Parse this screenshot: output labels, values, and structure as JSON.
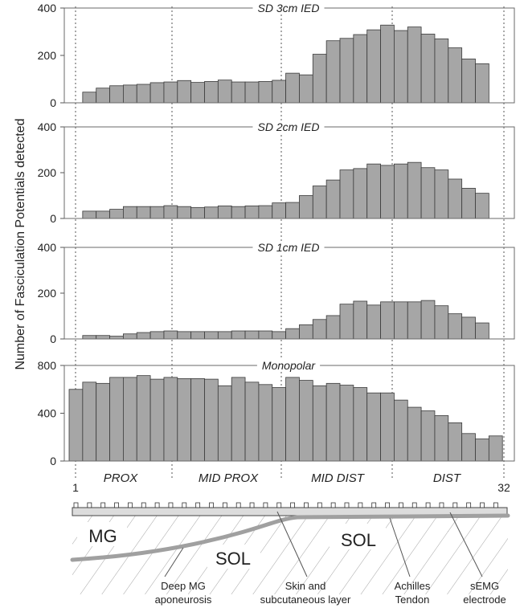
{
  "ylabel": "Number of Fasciculation Potentials detected",
  "channel_labels": {
    "first": "1",
    "last": "32"
  },
  "regions": [
    "PROX",
    "MID PROX",
    "MID DIST",
    "DIST"
  ],
  "anatomy_labels": {
    "mg": "MG",
    "sol_left": "SOL",
    "sol_right": "SOL",
    "deep_mg_line1": "Deep MG",
    "deep_mg_line2": "aponeurosis",
    "skin_line1": "Skin and",
    "skin_line2": "subcutaneous layer",
    "achilles_line1": "Achilles",
    "achilles_line2": "Tendon",
    "semg_line1": "sEMG",
    "semg_line2": "electrode"
  },
  "chart_data": [
    {
      "type": "bar",
      "title": "SD 3cm IED",
      "ylim": [
        0,
        400
      ],
      "yticks": [
        0,
        200,
        400
      ],
      "x": [
        2,
        3,
        4,
        5,
        6,
        7,
        8,
        9,
        10,
        11,
        12,
        13,
        14,
        15,
        16,
        17,
        18,
        19,
        20,
        21,
        22,
        23,
        24,
        25,
        26,
        27,
        28,
        29,
        30,
        31
      ],
      "values": [
        45,
        62,
        72,
        75,
        78,
        85,
        88,
        94,
        86,
        90,
        96,
        88,
        88,
        90,
        95,
        125,
        118,
        205,
        262,
        272,
        288,
        308,
        328,
        305,
        320,
        290,
        270,
        232,
        185,
        165
      ]
    },
    {
      "type": "bar",
      "title": "SD 2cm IED",
      "ylim": [
        0,
        400
      ],
      "yticks": [
        0,
        200,
        400
      ],
      "x": [
        2,
        3,
        4,
        5,
        6,
        7,
        8,
        9,
        10,
        11,
        12,
        13,
        14,
        15,
        16,
        17,
        18,
        19,
        20,
        21,
        22,
        23,
        24,
        25,
        26,
        27,
        28,
        29,
        30,
        31
      ],
      "values": [
        32,
        32,
        40,
        52,
        52,
        52,
        56,
        52,
        48,
        50,
        55,
        52,
        55,
        56,
        68,
        70,
        100,
        142,
        168,
        212,
        218,
        238,
        232,
        238,
        245,
        222,
        212,
        172,
        132,
        110
      ]
    },
    {
      "type": "bar",
      "title": "SD 1cm IED",
      "ylim": [
        0,
        400
      ],
      "yticks": [
        0,
        200,
        400
      ],
      "x": [
        2,
        3,
        4,
        5,
        6,
        7,
        8,
        9,
        10,
        11,
        12,
        13,
        14,
        15,
        16,
        17,
        18,
        19,
        20,
        21,
        22,
        23,
        24,
        25,
        26,
        27,
        28,
        29,
        30,
        31
      ],
      "values": [
        15,
        15,
        12,
        22,
        28,
        32,
        35,
        32,
        32,
        32,
        32,
        35,
        35,
        35,
        32,
        45,
        62,
        85,
        102,
        152,
        165,
        148,
        162,
        162,
        162,
        168,
        145,
        110,
        95,
        70
      ]
    },
    {
      "type": "bar",
      "title": "Monopolar",
      "ylim": [
        0,
        800
      ],
      "yticks": [
        0,
        400,
        800
      ],
      "x": [
        1,
        2,
        3,
        4,
        5,
        6,
        7,
        8,
        9,
        10,
        11,
        12,
        13,
        14,
        15,
        16,
        17,
        18,
        19,
        20,
        21,
        22,
        23,
        24,
        25,
        26,
        27,
        28,
        29,
        30,
        31,
        32
      ],
      "values": [
        600,
        660,
        650,
        700,
        700,
        715,
        685,
        700,
        690,
        690,
        685,
        630,
        700,
        660,
        640,
        615,
        700,
        675,
        630,
        650,
        635,
        615,
        570,
        570,
        510,
        450,
        420,
        380,
        320,
        230,
        185,
        210
      ]
    }
  ]
}
